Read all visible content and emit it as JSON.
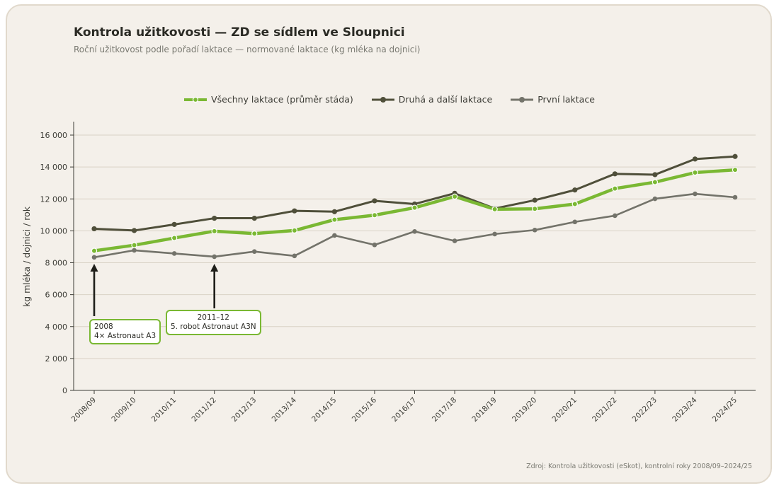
{
  "chart_data": {
    "type": "line",
    "title": "Kontrola užitkovosti — ZD se sídlem ve Sloupnici",
    "subtitle": "Roční užitkovost podle pořadí laktace — normované laktace (kg mléka na dojnici)",
    "ylabel": "kg mléka / dojnici / rok",
    "ylim": [
      0,
      16000
    ],
    "yticks": [
      0,
      2000,
      4000,
      6000,
      8000,
      10000,
      12000,
      14000,
      16000
    ],
    "ytick_labels": [
      "0",
      "2 000",
      "4 000",
      "6 000",
      "8 000",
      "10 000",
      "12 000",
      "14 000",
      "16 000"
    ],
    "grid": "horizontal",
    "legend": "top-center",
    "categories": [
      "2008/09",
      "2009/10",
      "2010/11",
      "2011/12",
      "2012/13",
      "2013/14",
      "2014/15",
      "2015/16",
      "2016/17",
      "2017/18",
      "2018/19",
      "2019/20",
      "2020/21",
      "2021/22",
      "2022/23",
      "2023/24",
      "2024/25"
    ],
    "series": [
      {
        "name": "Všechny laktace (průměr stáda)",
        "color": "#7ab833",
        "values": [
          8750,
          9100,
          9550,
          9980,
          9830,
          10020,
          10700,
          10980,
          11450,
          12150,
          11350,
          11380,
          11680,
          12650,
          13050,
          13650,
          13820
        ]
      },
      {
        "name": "Druhá a další laktace",
        "color": "#4f4f3a",
        "values": [
          10130,
          10020,
          10400,
          10790,
          10790,
          11250,
          11200,
          11880,
          11680,
          12350,
          11400,
          11920,
          12560,
          13570,
          13520,
          14500,
          14660
        ]
      },
      {
        "name": "První laktace",
        "color": "#73736a",
        "values": [
          8340,
          8780,
          8580,
          8380,
          8700,
          8430,
          9710,
          9120,
          9960,
          9370,
          9800,
          10050,
          10560,
          10950,
          12010,
          12320,
          12100
        ]
      }
    ],
    "annotations": [
      {
        "category": "2008/09",
        "lines": [
          "2008",
          "4× Astronaut A3"
        ]
      },
      {
        "category": "2011/12",
        "lines": [
          "2011–12",
          "5. robot Astronaut A3N"
        ]
      }
    ],
    "source": "Zdroj: Kontrola užitkovosti (eSkot), kontrolní roky 2008/09–2024/25"
  }
}
